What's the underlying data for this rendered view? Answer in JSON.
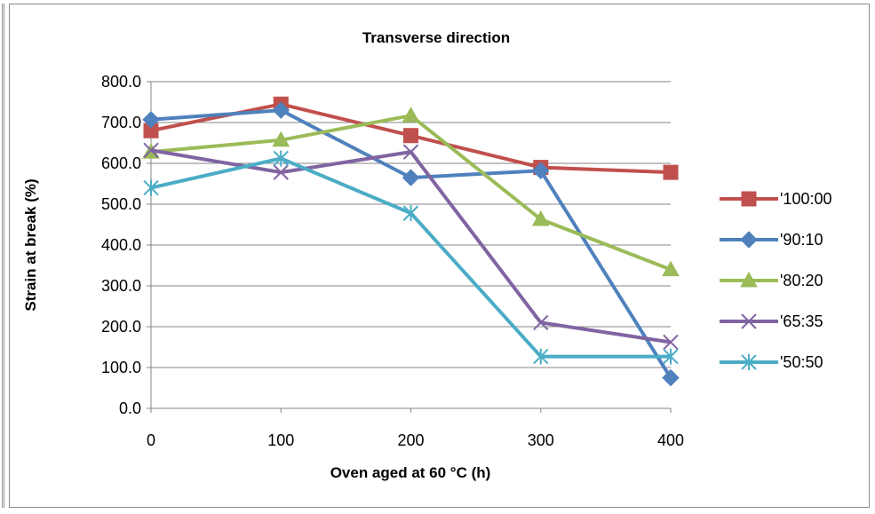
{
  "chart_data": {
    "type": "line",
    "title": "Transverse direction",
    "xlabel": "Oven aged at 60 °C (h)",
    "ylabel": "Strain at break (%)",
    "x": [
      0,
      100,
      200,
      300,
      400
    ],
    "x_tick_labels": [
      "0",
      "100",
      "200",
      "300",
      "400"
    ],
    "xlim": [
      0,
      400
    ],
    "ylim": [
      0,
      800
    ],
    "y_tick_labels": [
      "0.0",
      "100.0",
      "200.0",
      "300.0",
      "400.0",
      "500.0",
      "600.0",
      "700.0",
      "800.0"
    ],
    "grid": "horizontal",
    "legend_position": "right",
    "series": [
      {
        "name": "'100:00",
        "color": "#c0504d",
        "marker": "square",
        "values": [
          680,
          745,
          668,
          590,
          578
        ]
      },
      {
        "name": "'90:10",
        "color": "#4f81bd",
        "marker": "diamond",
        "values": [
          707,
          730,
          565,
          582,
          75
        ]
      },
      {
        "name": "'80:20",
        "color": "#9bbb59",
        "marker": "triangle",
        "values": [
          628,
          657,
          717,
          463,
          340
        ]
      },
      {
        "name": "'65:35",
        "color": "#8064a2",
        "marker": "x",
        "values": [
          632,
          578,
          628,
          210,
          162
        ]
      },
      {
        "name": "'50:50",
        "color": "#4bacc6",
        "marker": "star",
        "values": [
          540,
          612,
          478,
          127,
          127
        ]
      }
    ]
  }
}
